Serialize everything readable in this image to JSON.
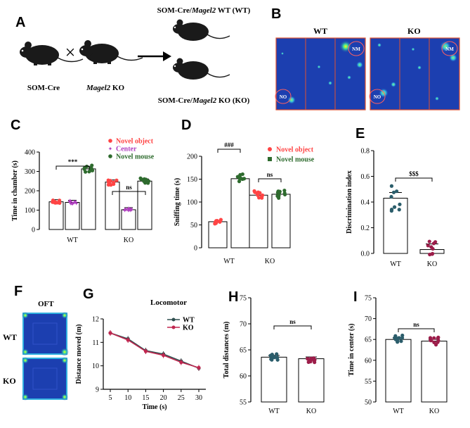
{
  "panels": {
    "A": {
      "letter": "A",
      "wt_label_pre": "SOM-Cre/",
      "wt_label_gene": "Magel2",
      "wt_label_post": " WT (WT)",
      "ko_label_pre": "SOM-Cre/",
      "ko_label_gene": "Magel2",
      "ko_label_post": " KO (KO)",
      "cross_symbol": "×",
      "parent1": "SOM-Cre",
      "parent2_gene": "Magel2",
      "parent2_post": " KO"
    },
    "B": {
      "letter": "B",
      "wt": "WT",
      "ko": "KO",
      "nm": "NM",
      "no": "NO"
    },
    "F": {
      "letter": "F",
      "title": "OFT",
      "wt": "WT",
      "ko": "KO"
    }
  },
  "colors": {
    "novel_object": "#ff4444",
    "center": "#b040c0",
    "novel_mouse": "#2e6b2e",
    "wt_line": "#2f4f4f",
    "ko_line": "#c0264f",
    "teal": "#2b5d6b",
    "maroon": "#9c1d4a",
    "arena": "#1c3fb0"
  },
  "chart_data": [
    {
      "id": "C",
      "letter": "C",
      "type": "bar",
      "ylabel": "Time in chamber (s)",
      "ylim": [
        0,
        400
      ],
      "yticks": [
        0,
        100,
        200,
        300,
        400
      ],
      "categories": [
        "WT",
        "KO"
      ],
      "series": [
        {
          "name": "Novel object",
          "values": [
            143,
            245
          ]
        },
        {
          "name": "Center",
          "values": [
            140,
            102
          ]
        },
        {
          "name": "Novel mouse",
          "values": [
            313,
            250
          ]
        }
      ],
      "annotations": [
        "***",
        "ns"
      ],
      "legend": [
        "Novel object",
        "Center",
        "Novel mouse"
      ]
    },
    {
      "id": "D",
      "letter": "D",
      "type": "bar",
      "ylabel": "Sniffing time (s)",
      "ylim": [
        0,
        200
      ],
      "yticks": [
        0,
        50,
        100,
        150,
        200
      ],
      "categories": [
        "WT",
        "KO"
      ],
      "series": [
        {
          "name": "Novel object",
          "values": [
            57,
            115
          ]
        },
        {
          "name": "Novel mouse",
          "values": [
            151,
            117
          ]
        }
      ],
      "annotations": [
        "###",
        "ns"
      ],
      "legend": [
        "Novel object",
        "Novel mouse"
      ]
    },
    {
      "id": "E",
      "letter": "E",
      "type": "bar",
      "ylabel": "Discrimination index",
      "ylim": [
        0,
        0.8
      ],
      "yticks": [
        "0.0",
        "0.2",
        "0.4",
        "0.6",
        "0.8"
      ],
      "categories": [
        "WT",
        "KO"
      ],
      "values": [
        0.43,
        0.03
      ],
      "annotations": [
        "$$$"
      ]
    },
    {
      "id": "G",
      "letter": "G",
      "type": "line",
      "title": "Locomotor",
      "xlabel": "Time (s)",
      "ylabel": "Distance moved (m)",
      "ylim": [
        9,
        12
      ],
      "yticks": [
        9,
        10,
        11,
        12
      ],
      "x": [
        5,
        10,
        15,
        20,
        25,
        30
      ],
      "series": [
        {
          "name": "WT",
          "values": [
            11.4,
            11.15,
            10.65,
            10.5,
            10.2,
            9.9
          ]
        },
        {
          "name": "KO",
          "values": [
            11.4,
            11.1,
            10.62,
            10.45,
            10.15,
            9.92
          ]
        }
      ],
      "legend": [
        "WT",
        "KO"
      ]
    },
    {
      "id": "H",
      "letter": "H",
      "type": "bar",
      "ylabel": "Total distances (m)",
      "ylim": [
        55,
        75
      ],
      "yticks": [
        55,
        60,
        65,
        70,
        75
      ],
      "categories": [
        "WT",
        "KO"
      ],
      "values": [
        63.6,
        63.3
      ],
      "annotations": [
        "ns"
      ]
    },
    {
      "id": "I",
      "letter": "I",
      "type": "bar",
      "ylabel": "Time in center (s)",
      "ylim": [
        50,
        75
      ],
      "yticks": [
        50,
        55,
        60,
        65,
        70,
        75
      ],
      "categories": [
        "WT",
        "KO"
      ],
      "values": [
        65,
        64.6
      ],
      "annotations": [
        "ns"
      ]
    }
  ]
}
